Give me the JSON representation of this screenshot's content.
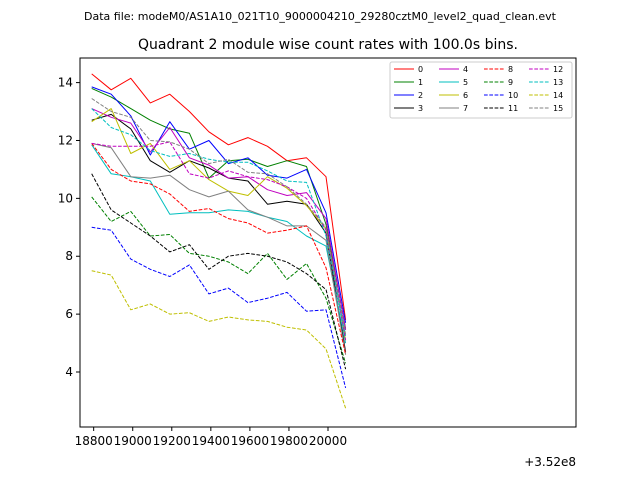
{
  "figure": {
    "suptitle": "Data file: modeM0/AS1A10_021T10_9000004210_29280cztM0_level2_quad_clean.evt"
  },
  "chart_data": {
    "type": "line",
    "title": "Quadrant 2 module wise count rates with 100.0s bins.",
    "xlabel": "",
    "ylabel": "",
    "x_offset_label": "+3.52e8",
    "xlim": [
      18730,
      21270
    ],
    "ylim": [
      2.1,
      14.85
    ],
    "xticks": [
      18800,
      19000,
      19200,
      19400,
      19600,
      19800,
      20000
    ],
    "xtick_labels": [
      "18800",
      "19000",
      "19200",
      "19400",
      "19600",
      "19800",
      "20000"
    ],
    "yticks": [
      4,
      6,
      8,
      10,
      12,
      14
    ],
    "ytick_labels": [
      "4",
      "6",
      "8",
      "10",
      "12",
      "14"
    ],
    "grid": false,
    "legend": {
      "position": "top-right",
      "columns": 4
    },
    "x": [
      18790,
      18890,
      18990,
      19090,
      19190,
      19290,
      19390,
      19490,
      19590,
      19690,
      19790,
      19890,
      19990,
      20090
    ],
    "series": [
      {
        "name": "0",
        "color": "#ff0000",
        "dash": "solid",
        "values": [
          14.3,
          13.75,
          14.15,
          13.3,
          13.6,
          13.0,
          12.3,
          11.85,
          12.1,
          11.8,
          11.3,
          11.4,
          10.75,
          5.8
        ]
      },
      {
        "name": "1",
        "color": "#008000",
        "dash": "solid",
        "values": [
          13.8,
          13.5,
          13.1,
          12.7,
          12.4,
          12.25,
          10.7,
          11.3,
          11.35,
          11.1,
          11.3,
          11.1,
          9.1,
          5.5
        ]
      },
      {
        "name": "2",
        "color": "#0000ff",
        "dash": "solid",
        "values": [
          13.85,
          13.6,
          12.85,
          11.5,
          12.65,
          11.7,
          12.0,
          11.2,
          11.4,
          10.8,
          10.7,
          11.0,
          9.5,
          5.7
        ]
      },
      {
        "name": "3",
        "color": "#000000",
        "dash": "solid",
        "values": [
          12.7,
          12.9,
          12.4,
          11.3,
          10.9,
          11.3,
          11.05,
          10.7,
          10.6,
          9.8,
          9.9,
          9.8,
          8.8,
          4.7
        ]
      },
      {
        "name": "4",
        "color": "#c000c0",
        "dash": "solid",
        "values": [
          13.1,
          12.8,
          12.6,
          11.6,
          12.45,
          11.4,
          11.15,
          10.7,
          10.75,
          10.3,
          10.1,
          10.2,
          9.3,
          5.45
        ]
      },
      {
        "name": "5",
        "color": "#00bfbf",
        "dash": "solid",
        "values": [
          11.85,
          10.85,
          10.75,
          10.6,
          9.45,
          9.5,
          9.5,
          9.6,
          9.55,
          9.35,
          9.2,
          8.7,
          8.35,
          5.0
        ]
      },
      {
        "name": "6",
        "color": "#bfbf00",
        "dash": "solid",
        "values": [
          12.65,
          13.1,
          11.55,
          11.9,
          11.0,
          11.3,
          10.65,
          10.25,
          10.1,
          10.75,
          10.35,
          9.75,
          8.95,
          5.1
        ]
      },
      {
        "name": "7",
        "color": "#808080",
        "dash": "solid",
        "values": [
          11.9,
          11.75,
          10.75,
          10.7,
          10.8,
          10.3,
          10.05,
          10.25,
          9.6,
          9.35,
          9.05,
          9.05,
          8.55,
          4.6
        ]
      },
      {
        "name": "8",
        "color": "#ff0000",
        "dash": "dashed",
        "values": [
          11.9,
          11.0,
          10.6,
          10.5,
          10.15,
          9.55,
          9.65,
          9.3,
          9.15,
          8.8,
          8.9,
          9.05,
          7.6,
          4.6
        ]
      },
      {
        "name": "9",
        "color": "#008000",
        "dash": "dashed",
        "values": [
          10.05,
          9.2,
          9.55,
          8.7,
          8.75,
          8.1,
          8.0,
          7.8,
          7.4,
          8.1,
          7.2,
          7.75,
          6.55,
          4.3
        ]
      },
      {
        "name": "10",
        "color": "#0000ff",
        "dash": "dashed",
        "values": [
          9.0,
          8.9,
          7.9,
          7.55,
          7.3,
          7.7,
          6.7,
          6.9,
          6.4,
          6.55,
          6.75,
          6.1,
          6.15,
          3.45
        ]
      },
      {
        "name": "11",
        "color": "#000000",
        "dash": "dashed",
        "values": [
          10.85,
          9.6,
          9.15,
          8.7,
          8.15,
          8.4,
          7.55,
          8.0,
          8.1,
          8.0,
          7.8,
          7.4,
          6.85,
          4.1
        ]
      },
      {
        "name": "12",
        "color": "#c000c0",
        "dash": "dashed",
        "values": [
          11.9,
          11.8,
          11.8,
          11.8,
          11.95,
          10.85,
          10.7,
          10.95,
          10.75,
          10.65,
          10.4,
          10.0,
          8.9,
          5.1
        ]
      },
      {
        "name": "13",
        "color": "#00bfbf",
        "dash": "dashed",
        "values": [
          13.1,
          12.45,
          12.2,
          11.65,
          11.45,
          11.55,
          11.35,
          11.25,
          11.25,
          10.95,
          10.6,
          10.55,
          8.7,
          5.25
        ]
      },
      {
        "name": "14",
        "color": "#bfbf00",
        "dash": "dashed",
        "values": [
          7.5,
          7.35,
          6.15,
          6.35,
          6.0,
          6.05,
          5.75,
          5.9,
          5.8,
          5.75,
          5.55,
          5.45,
          4.8,
          2.75
        ]
      },
      {
        "name": "15",
        "color": "#808080",
        "dash": "dashed",
        "values": [
          13.45,
          13.0,
          12.8,
          12.0,
          11.95,
          11.7,
          11.2,
          11.35,
          10.9,
          10.85,
          10.4,
          9.8,
          9.0,
          5.3
        ]
      }
    ]
  }
}
